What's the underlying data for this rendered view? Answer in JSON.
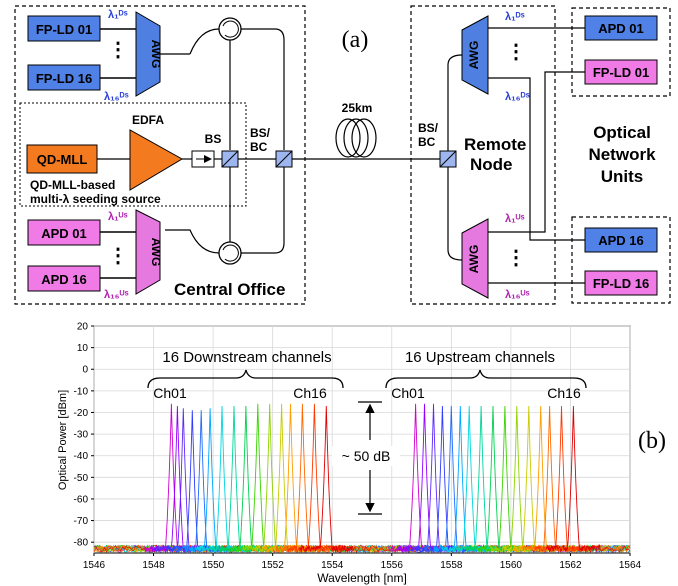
{
  "panel_labels": {
    "a": "(a)",
    "b": "(b)"
  },
  "colors": {
    "blue_box": "#4f81e6",
    "magenta_box": "#f07be6",
    "orange": "#f47a1f",
    "awg_blue": "#4f7fe0",
    "awg_magenta": "#e679e0",
    "lambda_blue": "#2a3fd8",
    "lambda_magenta": "#b020b0"
  },
  "central_office": {
    "title": "Central Office",
    "tx": {
      "first": "FP-LD 01",
      "last": "FP-LD 16"
    },
    "rx": {
      "first": "APD 01",
      "last": "APD 16"
    },
    "awg": "AWG",
    "ds_first": "λ₁ᴰˢ",
    "ds_last": "λ₁₆ᴰˢ",
    "us_first": "λ₁ᵁˢ",
    "us_last": "λ₁₆ᵁˢ",
    "seed_source": {
      "laser": "QD-MLL",
      "amp": "EDFA",
      "splitter": "BS",
      "caption1": "QD-MLL-based",
      "caption2": "multi-λ seeding source"
    },
    "bsbc_1": "BS/",
    "bsbc_2": "BC"
  },
  "fiber": {
    "length": "25km"
  },
  "remote_node": {
    "title1": "Remote",
    "title2": "Node",
    "bsbc_1": "BS/",
    "bsbc_2": "BC",
    "awg": "AWG"
  },
  "onu": {
    "title1": "Optical",
    "title2": "Network",
    "title3": "Units",
    "rx_first": "APD 01",
    "tx_first": "FP-LD 01",
    "rx_last": "APD 16",
    "tx_last": "FP-LD 16"
  },
  "spectrum_annotations": {
    "downstream_label": "16 Downstream channels",
    "upstream_label": "16 Upstream channels",
    "ch_first": "Ch01",
    "ch_last": "Ch16",
    "dynamic_range": "~ 50 dB"
  },
  "chart_data": {
    "type": "line",
    "xlabel": "Wavelength [nm]",
    "ylabel": "Optical Power [dBm]",
    "xlim": [
      1546,
      1564
    ],
    "ylim": [
      -85,
      20
    ],
    "x_ticks": [
      "1546",
      "1548",
      "1550",
      "1552",
      "1554",
      "1556",
      "1558",
      "1560",
      "1562",
      "1564"
    ],
    "y_ticks": [
      "20",
      "10",
      "0",
      "-10",
      "-20",
      "-30",
      "-40",
      "-50",
      "-60",
      "-70",
      "-80"
    ],
    "noise_floor": -83,
    "downstream_peaks": [
      {
        "wl": 1548.6,
        "p": -16
      },
      {
        "wl": 1548.8,
        "p": -17
      },
      {
        "wl": 1549.0,
        "p": -18
      },
      {
        "wl": 1549.3,
        "p": -19
      },
      {
        "wl": 1549.6,
        "p": -19
      },
      {
        "wl": 1549.9,
        "p": -18
      },
      {
        "wl": 1550.3,
        "p": -17
      },
      {
        "wl": 1550.7,
        "p": -17
      },
      {
        "wl": 1551.1,
        "p": -17
      },
      {
        "wl": 1551.5,
        "p": -16
      },
      {
        "wl": 1551.9,
        "p": -16
      },
      {
        "wl": 1552.3,
        "p": -16
      },
      {
        "wl": 1552.6,
        "p": -16
      },
      {
        "wl": 1553.0,
        "p": -16
      },
      {
        "wl": 1553.4,
        "p": -16
      },
      {
        "wl": 1553.8,
        "p": -17
      }
    ],
    "upstream_peaks": [
      {
        "wl": 1556.8,
        "p": -16
      },
      {
        "wl": 1557.1,
        "p": -16
      },
      {
        "wl": 1557.4,
        "p": -16
      },
      {
        "wl": 1557.7,
        "p": -17
      },
      {
        "wl": 1558.0,
        "p": -17
      },
      {
        "wl": 1558.3,
        "p": -17
      },
      {
        "wl": 1558.6,
        "p": -17
      },
      {
        "wl": 1559.0,
        "p": -17
      },
      {
        "wl": 1559.4,
        "p": -17
      },
      {
        "wl": 1559.8,
        "p": -17
      },
      {
        "wl": 1560.2,
        "p": -17
      },
      {
        "wl": 1560.6,
        "p": -17
      },
      {
        "wl": 1561.0,
        "p": -17
      },
      {
        "wl": 1561.3,
        "p": -17
      },
      {
        "wl": 1561.7,
        "p": -17
      },
      {
        "wl": 1562.1,
        "p": -17
      }
    ],
    "series_colors": [
      "#d000d0",
      "#9400ff",
      "#5a2bff",
      "#2f3bff",
      "#1f6bff",
      "#00a6ff",
      "#00d6e0",
      "#00d69a",
      "#00d050",
      "#3ad400",
      "#8fd400",
      "#c8cc00",
      "#ff9e00",
      "#ff6a00",
      "#ff3a00",
      "#e00000"
    ]
  }
}
